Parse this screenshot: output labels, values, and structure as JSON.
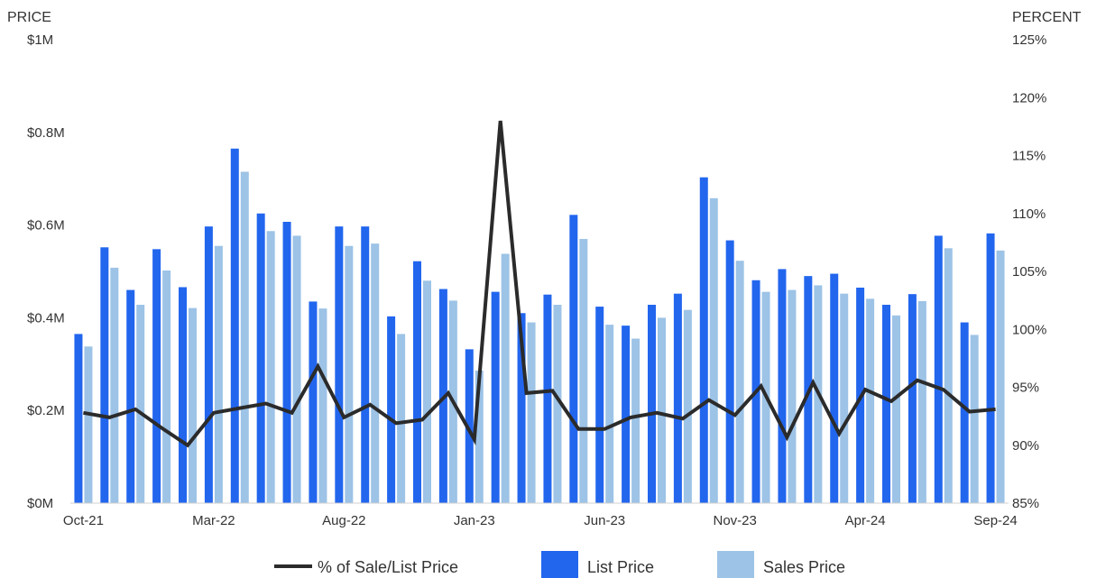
{
  "chart_data": {
    "type": "bar",
    "left_axis": {
      "title": "PRICE",
      "ticks": [
        "$0M",
        "$0.2M",
        "$0.4M",
        "$0.6M",
        "$0.8M",
        "$1M"
      ],
      "range": [
        0,
        1000000
      ]
    },
    "right_axis": {
      "title": "PERCENT",
      "ticks": [
        "85%",
        "90%",
        "95%",
        "100%",
        "105%",
        "110%",
        "115%",
        "120%",
        "125%"
      ],
      "range": [
        85,
        125
      ]
    },
    "x_tick_labels": [
      {
        "index": 0,
        "label": "Oct-21"
      },
      {
        "index": 5,
        "label": "Mar-22"
      },
      {
        "index": 10,
        "label": "Aug-22"
      },
      {
        "index": 15,
        "label": "Jan-23"
      },
      {
        "index": 20,
        "label": "Jun-23"
      },
      {
        "index": 25,
        "label": "Nov-23"
      },
      {
        "index": 30,
        "label": "Apr-24"
      },
      {
        "index": 35,
        "label": "Sep-24"
      }
    ],
    "categories": [
      "Oct-21",
      "Nov-21",
      "Dec-21",
      "Jan-22",
      "Feb-22",
      "Mar-22",
      "Apr-22",
      "May-22",
      "Jun-22",
      "Jul-22",
      "Aug-22",
      "Sep-22",
      "Oct-22",
      "Nov-22",
      "Dec-22",
      "Jan-23",
      "Feb-23",
      "Mar-23",
      "Apr-23",
      "May-23",
      "Jun-23",
      "Jul-23",
      "Aug-23",
      "Sep-23",
      "Oct-23",
      "Nov-23",
      "Dec-23",
      "Jan-24",
      "Feb-24",
      "Mar-24",
      "Apr-24",
      "May-24",
      "Jun-24",
      "Jul-24",
      "Aug-24",
      "Sep-24"
    ],
    "series": [
      {
        "name": "List Price",
        "type": "bar",
        "axis": "left",
        "color": "#2266ee",
        "values": [
          365000,
          552000,
          460000,
          548000,
          466000,
          597000,
          765000,
          625000,
          607000,
          435000,
          597000,
          597000,
          403000,
          522000,
          462000,
          332000,
          456000,
          410000,
          450000,
          622000,
          424000,
          383000,
          428000,
          452000,
          703000,
          567000,
          481000,
          505000,
          490000,
          495000,
          465000,
          428000,
          451000,
          577000,
          390000,
          582000
        ]
      },
      {
        "name": "Sales Price",
        "type": "bar",
        "axis": "left",
        "color": "#9dc3e6",
        "values": [
          338000,
          508000,
          428000,
          502000,
          421000,
          555000,
          715000,
          587000,
          577000,
          420000,
          555000,
          560000,
          365000,
          480000,
          437000,
          286000,
          538000,
          390000,
          428000,
          570000,
          385000,
          355000,
          400000,
          417000,
          658000,
          523000,
          456000,
          460000,
          470000,
          452000,
          441000,
          405000,
          436000,
          550000,
          363000,
          545000
        ]
      },
      {
        "name": "% of Sale/List Price",
        "type": "line",
        "axis": "right",
        "color": "#2b2b2b",
        "values": [
          92.8,
          92.4,
          93.1,
          91.5,
          90.0,
          92.8,
          93.2,
          93.6,
          92.8,
          96.8,
          92.4,
          93.5,
          91.9,
          92.2,
          94.5,
          90.5,
          118.0,
          94.5,
          94.7,
          91.4,
          91.4,
          92.4,
          92.8,
          92.3,
          93.9,
          92.6,
          95.1,
          90.7,
          95.4,
          91.0,
          94.8,
          93.8,
          95.6,
          94.8,
          92.9,
          93.1
        ]
      }
    ],
    "legend": [
      "% of Sale/List Price",
      "List Price",
      "Sales Price"
    ],
    "legend_position": "bottom",
    "grid": false
  }
}
